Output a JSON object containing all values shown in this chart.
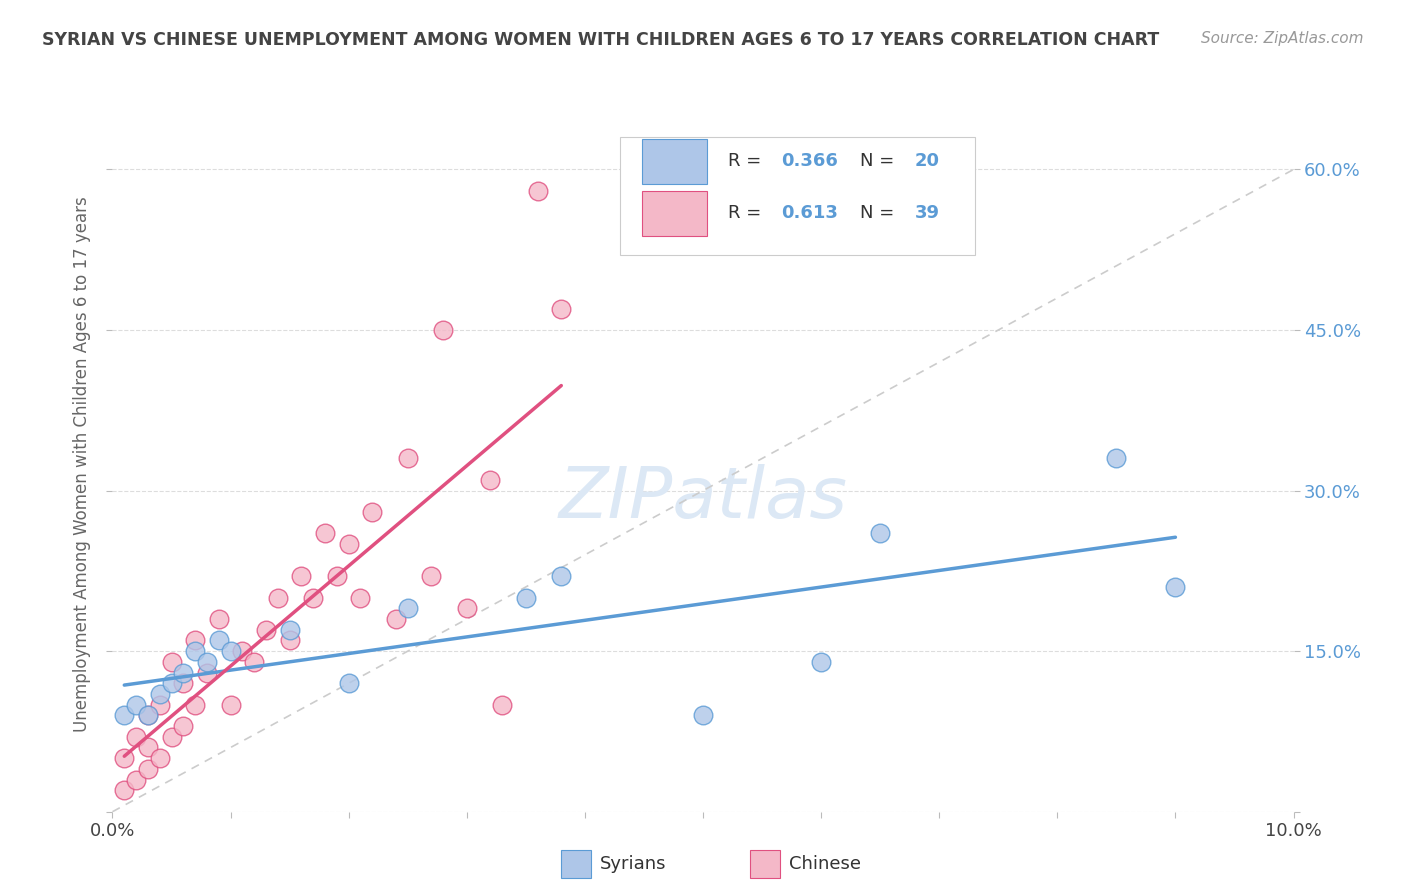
{
  "title": "SYRIAN VS CHINESE UNEMPLOYMENT AMONG WOMEN WITH CHILDREN AGES 6 TO 17 YEARS CORRELATION CHART",
  "source": "Source: ZipAtlas.com",
  "ylabel": "Unemployment Among Women with Children Ages 6 to 17 years",
  "syrians_color": "#aec6e8",
  "chinese_color": "#f4b8c8",
  "trendline_syrians_color": "#5b9bd5",
  "trendline_chinese_color": "#e05080",
  "trendline_diagonal_color": "#cccccc",
  "syrians_x": [
    0.001,
    0.002,
    0.003,
    0.004,
    0.005,
    0.006,
    0.007,
    0.008,
    0.009,
    0.01,
    0.015,
    0.02,
    0.025,
    0.035,
    0.038,
    0.05,
    0.06,
    0.065,
    0.085,
    0.09
  ],
  "syrians_y": [
    0.09,
    0.1,
    0.09,
    0.11,
    0.12,
    0.13,
    0.15,
    0.14,
    0.16,
    0.15,
    0.17,
    0.12,
    0.19,
    0.2,
    0.22,
    0.09,
    0.14,
    0.26,
    0.33,
    0.21
  ],
  "chinese_x": [
    0.001,
    0.001,
    0.002,
    0.002,
    0.003,
    0.003,
    0.003,
    0.004,
    0.004,
    0.005,
    0.005,
    0.006,
    0.006,
    0.007,
    0.007,
    0.008,
    0.009,
    0.01,
    0.011,
    0.012,
    0.013,
    0.014,
    0.015,
    0.016,
    0.017,
    0.018,
    0.019,
    0.02,
    0.021,
    0.022,
    0.024,
    0.025,
    0.027,
    0.028,
    0.03,
    0.032,
    0.033,
    0.036,
    0.038
  ],
  "chinese_y": [
    0.02,
    0.05,
    0.03,
    0.07,
    0.04,
    0.06,
    0.09,
    0.05,
    0.1,
    0.07,
    0.14,
    0.08,
    0.12,
    0.1,
    0.16,
    0.13,
    0.18,
    0.1,
    0.15,
    0.14,
    0.17,
    0.2,
    0.16,
    0.22,
    0.2,
    0.26,
    0.22,
    0.25,
    0.2,
    0.28,
    0.18,
    0.33,
    0.22,
    0.45,
    0.19,
    0.31,
    0.1,
    0.58,
    0.47
  ],
  "syrians_R": "0.366",
  "syrians_N": "20",
  "chinese_R": "0.613",
  "chinese_N": "39",
  "xlim": [
    0.0,
    0.1
  ],
  "ylim": [
    0.0,
    0.65
  ],
  "xticks": [
    0.0,
    0.01,
    0.02,
    0.03,
    0.04,
    0.05,
    0.06,
    0.07,
    0.08,
    0.09,
    0.1
  ],
  "yticks": [
    0.0,
    0.15,
    0.3,
    0.45,
    0.6
  ],
  "grid_color": "#dddddd",
  "tick_color": "#bbbbbb",
  "label_color_blue": "#5b9bd5",
  "label_color_dark": "#444444",
  "watermark_text": "ZIPatlas",
  "watermark_color": "#dce8f5"
}
